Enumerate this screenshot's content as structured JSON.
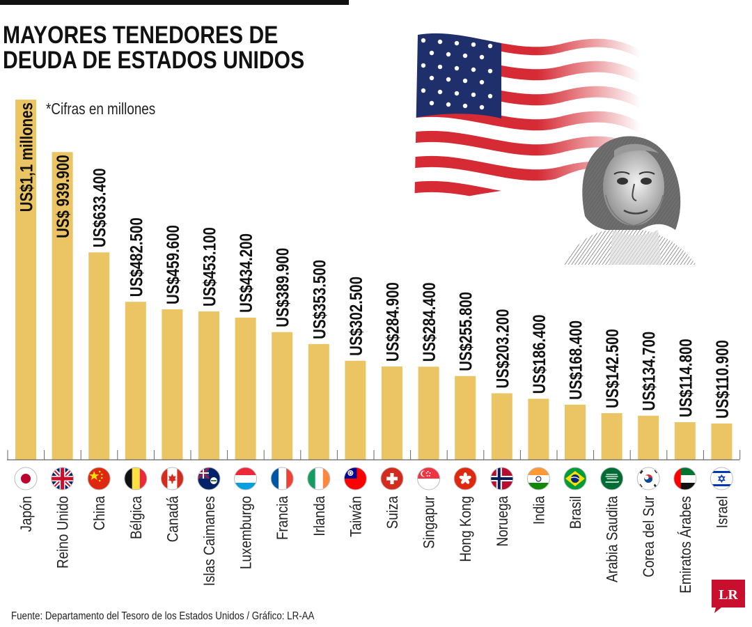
{
  "header": {
    "title_line1": "MAYORES TENEDORES DE",
    "title_line2": "DEUDA DE ESTADOS UNIDOS"
  },
  "note": "*Cifras en millones",
  "source": "Fuente: Departamento del Tesoro de los Estados Unidos / Gráfico: LR-AA",
  "logo_text": "LR",
  "colors": {
    "bar": "#ebc564",
    "logo": "#c8102e",
    "text": "#111111"
  },
  "icons": [
    "usa-flag-illustration",
    "benjamin-franklin-portrait",
    "lr-logo"
  ],
  "chart_data": {
    "type": "bar",
    "title": "MAYORES TENEDORES DE DEUDA DE ESTADOS UNIDOS",
    "unit": "*Cifras en millones",
    "categories": [
      "Japón",
      "Reino Unido",
      "China",
      "Bélgica",
      "Canadá",
      "Islas Caimanes",
      "Luxemburgo",
      "Francia",
      "Irlanda",
      "Taiwán",
      "Suiza",
      "Singapur",
      "Hong Kong",
      "Noruega",
      "India",
      "Brasil",
      "Arabia Saudita",
      "Corea del Sur",
      "Emiratos Árabes",
      "Israel"
    ],
    "values": [
      1100000,
      939900,
      633400,
      482500,
      459600,
      453100,
      434200,
      389900,
      353500,
      302500,
      284900,
      284400,
      255800,
      203200,
      186400,
      168400,
      142500,
      134700,
      114800,
      110900
    ],
    "labels": [
      "US$1,1 millones",
      "US$ 939.900",
      "US$633.400",
      "US$482.500",
      "US$459.600",
      "US$453.100",
      "US$434.200",
      "US$389.900",
      "US$353.500",
      "US$302.500",
      "US$284.900",
      "US$284.400",
      "US$255.800",
      "US$203.200",
      "US$186.400",
      "US$168.400",
      "US$142.500",
      "US$134.700",
      "US$114.800",
      "US$110.900"
    ],
    "flags": [
      "japan",
      "uk",
      "china",
      "belgium",
      "canada",
      "cayman",
      "luxembourg",
      "france",
      "ireland",
      "taiwan",
      "switzerland",
      "singapore",
      "hongkong",
      "norway",
      "india",
      "brazil",
      "saudi",
      "korea",
      "uae",
      "israel"
    ],
    "ylim": [
      0,
      1100000
    ],
    "grid": false,
    "legend": "none"
  }
}
